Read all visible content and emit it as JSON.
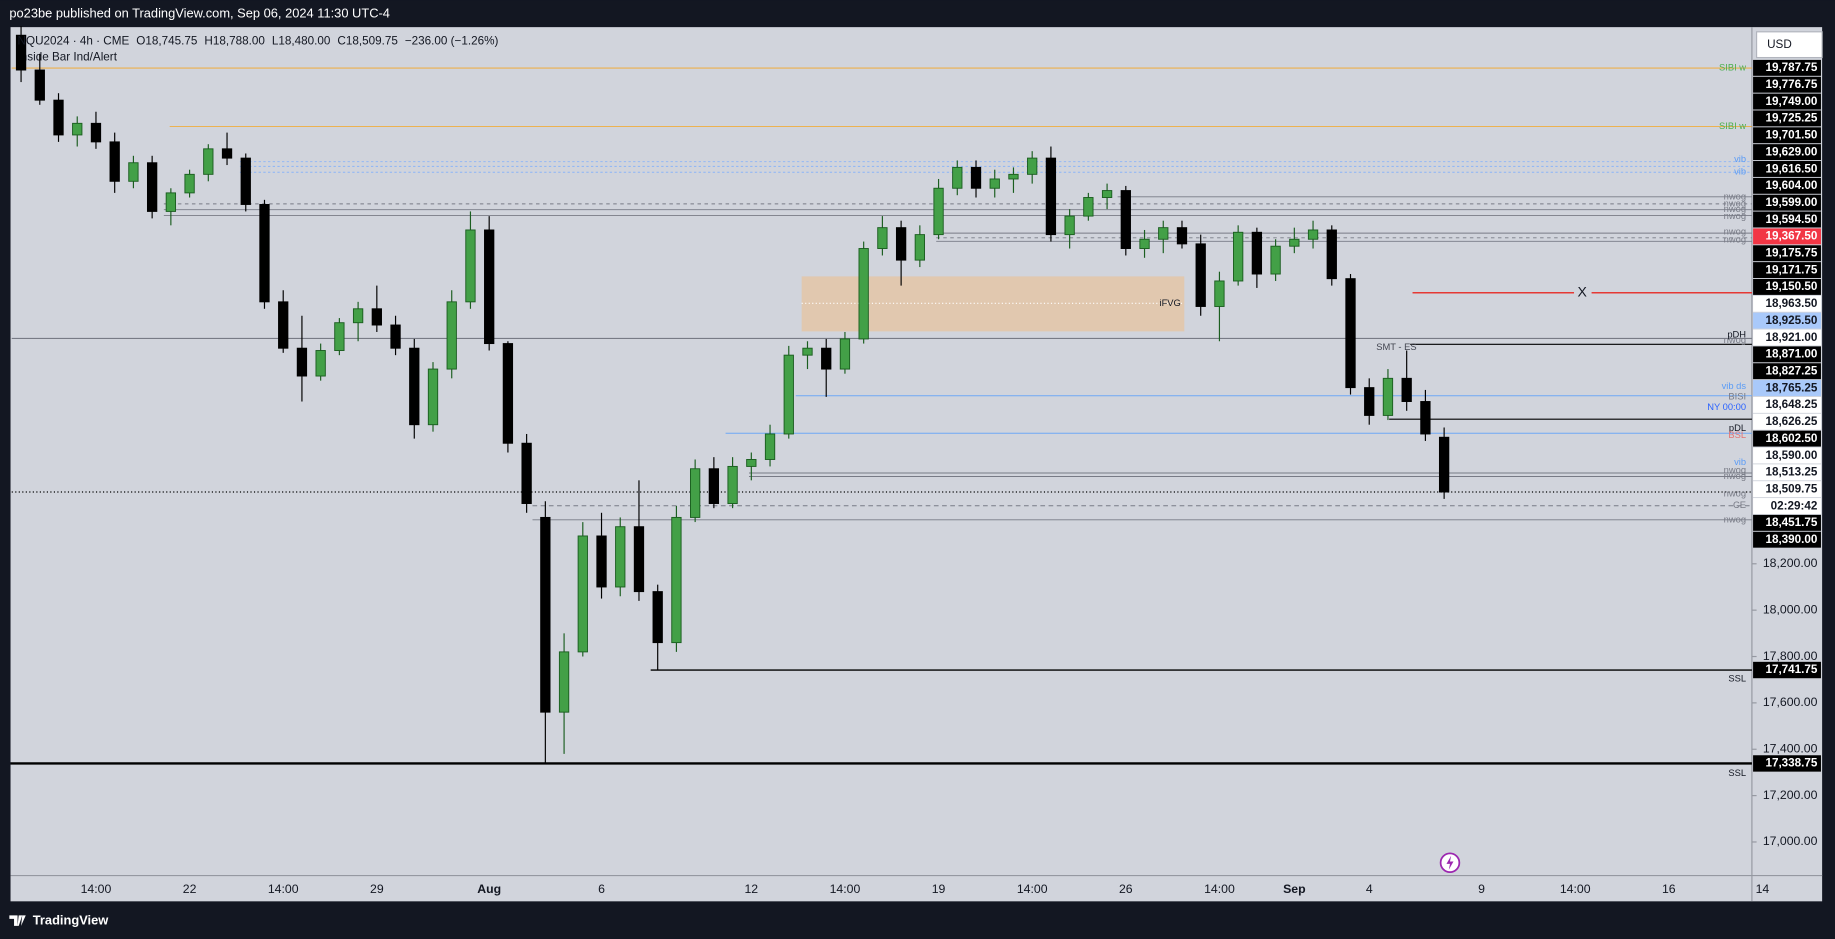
{
  "header": {
    "text": "po23be published on TradingView.com, Sep 06, 2024 11:30 UTC-4"
  },
  "footer": {
    "brand": "TradingView"
  },
  "chart_data": {
    "type": "candlestick",
    "legend": [
      "NQU2024 · 4h · CME",
      "O18,745.75",
      "H18,788.00",
      "L18,480.00",
      "C18,509.75",
      "−236.00 (−1.26%)"
    ],
    "indicator": "Inside Bar Ind/Alert",
    "currency": "USD",
    "up_color": "#43a047",
    "down_color": "#000000",
    "ylim": [
      16855,
      20515
    ],
    "yticks": [
      {
        "value": 18200,
        "label": "18,200.00"
      },
      {
        "value": 18000,
        "label": "18,000.00"
      },
      {
        "value": 17800,
        "label": "17,800.00"
      },
      {
        "value": 17600,
        "label": "17,600.00"
      },
      {
        "value": 17400,
        "label": "17,400.00"
      },
      {
        "value": 17200,
        "label": "17,200.00"
      },
      {
        "value": 17000,
        "label": "17,000.00"
      }
    ],
    "categories": [
      null,
      null,
      null,
      null,
      "14:00",
      null,
      null,
      null,
      null,
      "22",
      null,
      null,
      null,
      null,
      "14:00",
      null,
      null,
      null,
      null,
      "29",
      null,
      null,
      null,
      null,
      null,
      "Aug",
      null,
      null,
      null,
      null,
      null,
      "6",
      null,
      null,
      null,
      null,
      null,
      null,
      null,
      "12",
      null,
      null,
      null,
      null,
      "14:00",
      null,
      null,
      null,
      null,
      "19",
      null,
      null,
      null,
      null,
      "14:00",
      null,
      null,
      null,
      null,
      "26",
      null,
      null,
      null,
      null,
      "14:00",
      null,
      null,
      null,
      "Sep",
      null,
      null,
      null,
      "4",
      null,
      null,
      null,
      null,
      null,
      "9",
      null,
      null,
      null,
      null,
      "14:00",
      null,
      null,
      null,
      null,
      "16",
      null,
      null,
      null,
      null,
      "14"
    ],
    "open": [
      20480,
      20330,
      20200,
      20050,
      20100,
      20020,
      19850,
      19930,
      19720,
      19800,
      19880,
      19990,
      19950,
      19750,
      19330,
      19130,
      19010,
      19120,
      19240,
      19300,
      19230,
      19130,
      18800,
      19040,
      19330,
      19640,
      19150,
      18720,
      18400,
      17560,
      17820,
      18320,
      18100,
      18360,
      18080,
      17860,
      18400,
      18610,
      18460,
      18620,
      18650,
      18760,
      19100,
      19130,
      19040,
      19170,
      19560,
      19650,
      19510,
      19620,
      19820,
      19910,
      19820,
      19860,
      19880,
      19950,
      19620,
      19700,
      19780,
      19810,
      19560,
      19600,
      19650,
      19580,
      19310,
      19420,
      19630,
      19450,
      19570,
      19600,
      19640,
      19430,
      18960,
      18840,
      19000,
      18900,
      18745.75,
      null,
      null,
      null,
      null,
      null,
      null,
      null,
      null,
      null,
      null,
      null,
      null,
      null,
      null,
      null,
      null,
      null
    ],
    "high": [
      20520,
      20400,
      20230,
      20130,
      20150,
      20060,
      19960,
      19960,
      19820,
      19900,
      20010,
      20060,
      19970,
      19770,
      19380,
      19270,
      19150,
      19260,
      19330,
      19400,
      19270,
      19170,
      19070,
      19380,
      19720,
      19700,
      19160,
      18760,
      18470,
      17900,
      18380,
      18420,
      18400,
      18560,
      18110,
      18450,
      18650,
      18660,
      18660,
      18680,
      18800,
      19140,
      19160,
      19170,
      19200,
      19590,
      19700,
      19680,
      19660,
      19860,
      19940,
      19940,
      19900,
      19910,
      19980,
      20000,
      19730,
      19800,
      19840,
      19830,
      19640,
      19680,
      19680,
      19620,
      19460,
      19660,
      19650,
      19600,
      19650,
      19680,
      19660,
      19450,
      19000,
      19040,
      19120,
      18950,
      18788,
      null,
      null,
      null,
      null,
      null,
      null,
      null,
      null,
      null,
      null,
      null,
      null,
      null,
      null,
      null,
      null,
      null
    ],
    "low": [
      20278,
      20180,
      20020,
      20000,
      19990,
      19800,
      19820,
      19690,
      19660,
      19780,
      19850,
      19920,
      19720,
      19300,
      19110,
      18900,
      18990,
      19100,
      19160,
      19200,
      19100,
      18740,
      18770,
      19000,
      19300,
      19120,
      18680,
      18420,
      17340,
      17380,
      17800,
      18050,
      18060,
      18040,
      17740,
      17820,
      18380,
      18440,
      18440,
      18560,
      18620,
      18740,
      19040,
      18920,
      19020,
      19150,
      19530,
      19400,
      19480,
      19600,
      19790,
      19780,
      19780,
      19800,
      19840,
      19590,
      19560,
      19680,
      19730,
      19530,
      19520,
      19540,
      19560,
      19270,
      19160,
      19400,
      19390,
      19420,
      19540,
      19560,
      19400,
      18930,
      18800,
      18820,
      18860,
      18730,
      18480,
      null,
      null,
      null,
      null,
      null,
      null,
      null,
      null,
      null,
      null,
      null,
      null,
      null,
      null,
      null,
      null,
      null
    ],
    "close": [
      20330,
      20200,
      20050,
      20100,
      20020,
      19850,
      19930,
      19720,
      19800,
      19880,
      19990,
      19950,
      19750,
      19330,
      19130,
      19010,
      19120,
      19240,
      19300,
      19230,
      19130,
      18800,
      19040,
      19330,
      19640,
      19150,
      18720,
      18460,
      17560,
      17820,
      18320,
      18100,
      18360,
      18080,
      17860,
      18400,
      18610,
      18460,
      18620,
      18650,
      18760,
      19100,
      19130,
      19040,
      19170,
      19560,
      19650,
      19510,
      19620,
      19820,
      19910,
      19820,
      19860,
      19880,
      19950,
      19620,
      19700,
      19780,
      19810,
      19560,
      19600,
      19650,
      19580,
      19310,
      19420,
      19630,
      19450,
      19570,
      19600,
      19640,
      19430,
      18960,
      18840,
      19000,
      18900,
      18760,
      18509.75,
      null,
      null,
      null,
      null,
      null,
      null,
      null,
      null,
      null,
      null,
      null,
      null,
      null,
      null,
      null,
      null,
      null
    ],
    "flags": [
      {
        "label": "19,787.75",
        "style": "dark"
      },
      {
        "label": "19,776.75",
        "style": "dark"
      },
      {
        "label": "19,749.00",
        "style": "dark"
      },
      {
        "label": "19,725.25",
        "style": "dark"
      },
      {
        "label": "19,701.50",
        "style": "dark"
      },
      {
        "label": "19,629.00",
        "style": "dark"
      },
      {
        "label": "19,616.50",
        "style": "dark"
      },
      {
        "label": "19,604.00",
        "style": "dark"
      },
      {
        "label": "19,599.00",
        "style": "dark"
      },
      {
        "label": "19,594.50",
        "style": "dark"
      },
      {
        "label": "19,367.50",
        "style": "red"
      },
      {
        "label": "19,175.75",
        "style": "dark"
      },
      {
        "label": "19,171.75",
        "style": "dark"
      },
      {
        "label": "19,150.50",
        "style": "dark"
      },
      {
        "label": "18,963.50",
        "style": "light"
      },
      {
        "label": "18,925.50",
        "style": "blue"
      },
      {
        "label": "18,921.00",
        "style": "light"
      },
      {
        "label": "18,871.00",
        "style": "dark"
      },
      {
        "label": "18,827.25",
        "style": "dark"
      },
      {
        "label": "18,765.25",
        "style": "blue"
      },
      {
        "label": "18,648.25",
        "style": "light"
      },
      {
        "label": "18,626.25",
        "style": "light"
      },
      {
        "label": "18,602.50",
        "style": "dark"
      },
      {
        "label": "18,590.00",
        "style": "light"
      },
      {
        "label": "18,513.25",
        "style": "light"
      },
      {
        "label": "18,509.75",
        "style": "light"
      },
      {
        "label": "02:29:42",
        "style": "light"
      },
      {
        "label": "18,451.75",
        "style": "dark"
      },
      {
        "label": "18,390.00",
        "style": "dark"
      }
    ],
    "levels": [
      {
        "value": 17741.75,
        "label": "17,741.75"
      },
      {
        "value": 17338.75,
        "label": "17,338.75"
      }
    ],
    "annotations": [
      "SIBI w",
      "SIBI w",
      "vib",
      "vib",
      "nwog",
      "nwog",
      "nwog",
      "nwog",
      "nwog",
      "nwog",
      "iFVG",
      "X",
      "SMT - ES",
      "pDH",
      "nwog",
      "vib ds",
      "BISI",
      "NY 00:00",
      "pDL",
      "BSL",
      "vib",
      "nwog",
      "nwog",
      "nwog",
      "CE",
      "nwog",
      "SSL",
      "SSL"
    ]
  }
}
